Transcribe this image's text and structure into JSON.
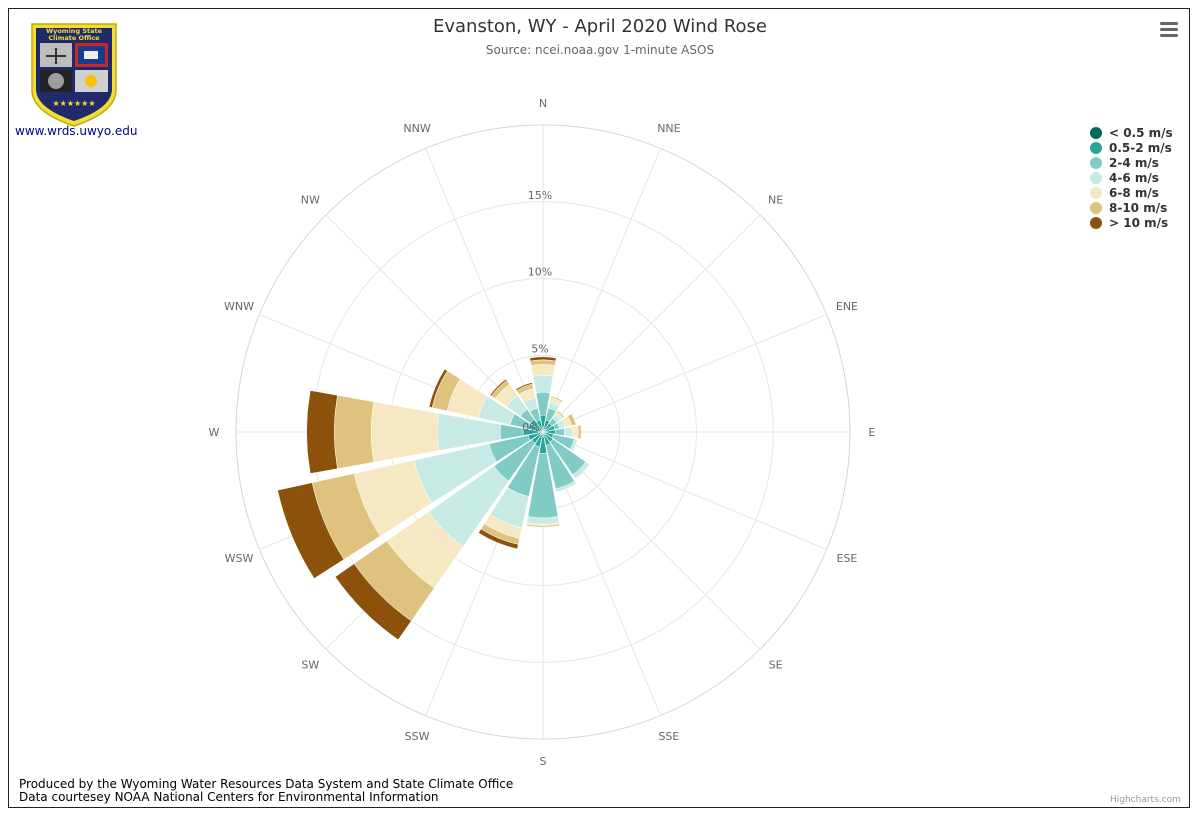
{
  "header": {
    "title": "Evanston, WY - April 2020 Wind Rose",
    "subtitle": "Source: ncei.noaa.gov 1-minute ASOS"
  },
  "logo": {
    "line1": "Wyoming State",
    "line2": "Climate Office",
    "link_text": "www.wrds.uwyo.edu"
  },
  "menu": {
    "icon": "hamburger-menu-icon"
  },
  "footer": {
    "line1": "Produced by the Wyoming Water Resources Data System and State Climate Office",
    "line2": "Data courtesey NOAA National Centers for Environmental Information",
    "credit": "Highcharts.com"
  },
  "chart_data": {
    "type": "windrose",
    "title": "Evanston, WY - April 2020 Wind Rose",
    "subtitle": "Source: ncei.noaa.gov 1-minute ASOS",
    "categories": [
      "N",
      "NNE",
      "NE",
      "ENE",
      "E",
      "ESE",
      "SE",
      "SSE",
      "S",
      "SSW",
      "SW",
      "WSW",
      "W",
      "WNW",
      "NW",
      "NNW"
    ],
    "radial_axis": {
      "min": 0,
      "max": 20,
      "unit": "%",
      "tick_values": [
        0,
        5,
        10,
        15
      ],
      "tick_labels": [
        "0%",
        "5%",
        "10%",
        "15%"
      ]
    },
    "stacking": "normal",
    "series": [
      {
        "name": "< 0.5 m/s",
        "color": "#00695c",
        "values": [
          0.3,
          0.2,
          0.2,
          0.2,
          0.2,
          0.2,
          0.2,
          0.2,
          0.3,
          0.2,
          0.2,
          0.2,
          0.3,
          0.2,
          0.3,
          0.2
        ]
      },
      {
        "name": "0.5-2 m/s",
        "color": "#26a69a",
        "values": [
          0.8,
          0.6,
          0.5,
          0.6,
          0.6,
          0.5,
          0.6,
          0.7,
          1.1,
          0.8,
          0.7,
          0.8,
          1.0,
          0.8,
          0.7,
          0.6
        ]
      },
      {
        "name": "2-4 m/s",
        "color": "#80cbc4",
        "values": [
          1.5,
          0.8,
          0.4,
          0.3,
          0.6,
          1.4,
          2.6,
          2.9,
          4.2,
          3.3,
          3.0,
          2.6,
          1.5,
          1.2,
          0.8,
          0.8
        ]
      },
      {
        "name": "4-6 m/s",
        "color": "#c7eae5",
        "values": [
          1.1,
          0.4,
          0.3,
          0.4,
          0.5,
          0.2,
          0.3,
          0.2,
          0.4,
          2.1,
          5.2,
          5.0,
          4.1,
          2.1,
          1.1,
          0.7
        ]
      },
      {
        "name": "6-8 m/s",
        "color": "#f6e8c3",
        "values": [
          0.7,
          0.3,
          0.2,
          0.4,
          0.4,
          0.0,
          0.0,
          0.0,
          0.1,
          0.7,
          3.3,
          4.0,
          4.3,
          2.1,
          0.9,
          0.6
        ]
      },
      {
        "name": "8-10 m/s",
        "color": "#dfc27d",
        "values": [
          0.3,
          0.1,
          0.1,
          0.3,
          0.2,
          0.0,
          0.0,
          0.0,
          0.1,
          0.4,
          2.6,
          2.8,
          2.4,
          1.0,
          0.3,
          0.3
        ]
      },
      {
        "name": "> 10 m/s",
        "color": "#8c510a",
        "values": [
          0.2,
          0.0,
          0.0,
          0.0,
          0.0,
          0.0,
          0.0,
          0.0,
          0.0,
          0.3,
          1.5,
          2.3,
          1.8,
          0.2,
          0.1,
          0.1
        ]
      }
    ],
    "legend_placement": "top-right",
    "grid": true
  }
}
